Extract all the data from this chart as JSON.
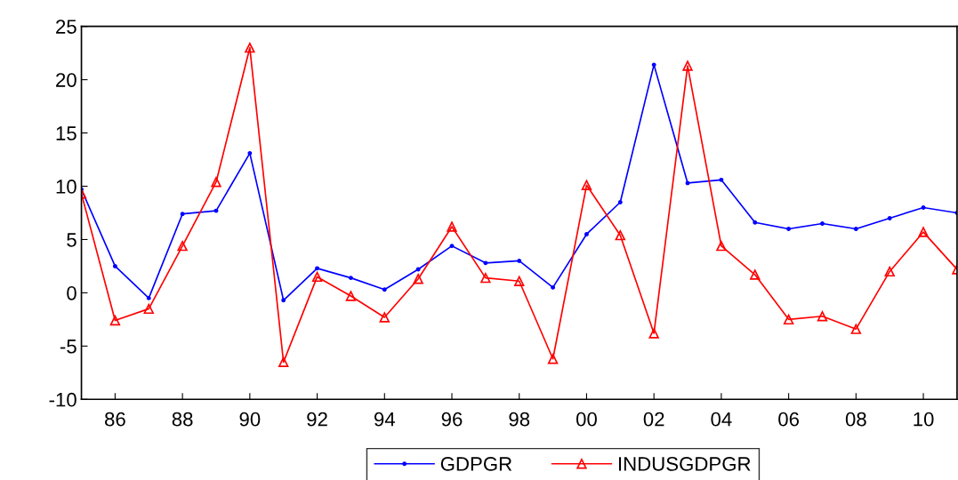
{
  "chart_data": {
    "type": "line",
    "x": [
      1985,
      1986,
      1987,
      1988,
      1989,
      1990,
      1991,
      1992,
      1993,
      1994,
      1995,
      1996,
      1997,
      1998,
      1999,
      2000,
      2001,
      2002,
      2003,
      2004,
      2005,
      2006,
      2007,
      2008,
      2009,
      2010,
      2011
    ],
    "series": [
      {
        "name": "GDPGR",
        "color": "#0000ff",
        "marker": "circle",
        "values": [
          9.7,
          2.5,
          -0.5,
          7.4,
          7.7,
          13.1,
          -0.7,
          2.3,
          1.4,
          0.3,
          2.2,
          4.4,
          2.8,
          3.0,
          0.5,
          5.5,
          8.5,
          21.4,
          10.3,
          10.6,
          6.6,
          6.0,
          6.5,
          6.0,
          7.0,
          8.0,
          7.5
        ]
      },
      {
        "name": "INDUSGDPGR",
        "color": "#ff0000",
        "marker": "triangle",
        "values": [
          9.3,
          -2.6,
          -1.5,
          4.4,
          10.4,
          23.0,
          -6.5,
          1.5,
          -0.3,
          -2.3,
          1.3,
          6.2,
          1.4,
          1.1,
          -6.2,
          10.1,
          5.4,
          -3.8,
          21.3,
          4.4,
          1.7,
          -2.5,
          -2.2,
          -3.4,
          2.0,
          5.7,
          2.2
        ]
      }
    ],
    "xlim": [
      1985,
      2011
    ],
    "xticks": [
      {
        "value": 1986,
        "label": "86"
      },
      {
        "value": 1988,
        "label": "88"
      },
      {
        "value": 1990,
        "label": "90"
      },
      {
        "value": 1992,
        "label": "92"
      },
      {
        "value": 1994,
        "label": "94"
      },
      {
        "value": 1996,
        "label": "96"
      },
      {
        "value": 1998,
        "label": "98"
      },
      {
        "value": 2000,
        "label": "00"
      },
      {
        "value": 2002,
        "label": "02"
      },
      {
        "value": 2004,
        "label": "04"
      },
      {
        "value": 2006,
        "label": "06"
      },
      {
        "value": 2008,
        "label": "08"
      },
      {
        "value": 2010,
        "label": "10"
      }
    ],
    "ylim": [
      -10,
      25
    ],
    "yticks": [
      -10,
      -5,
      0,
      5,
      10,
      15,
      20,
      25
    ],
    "grid": false,
    "legend": "bottom",
    "line_style": "solid"
  }
}
